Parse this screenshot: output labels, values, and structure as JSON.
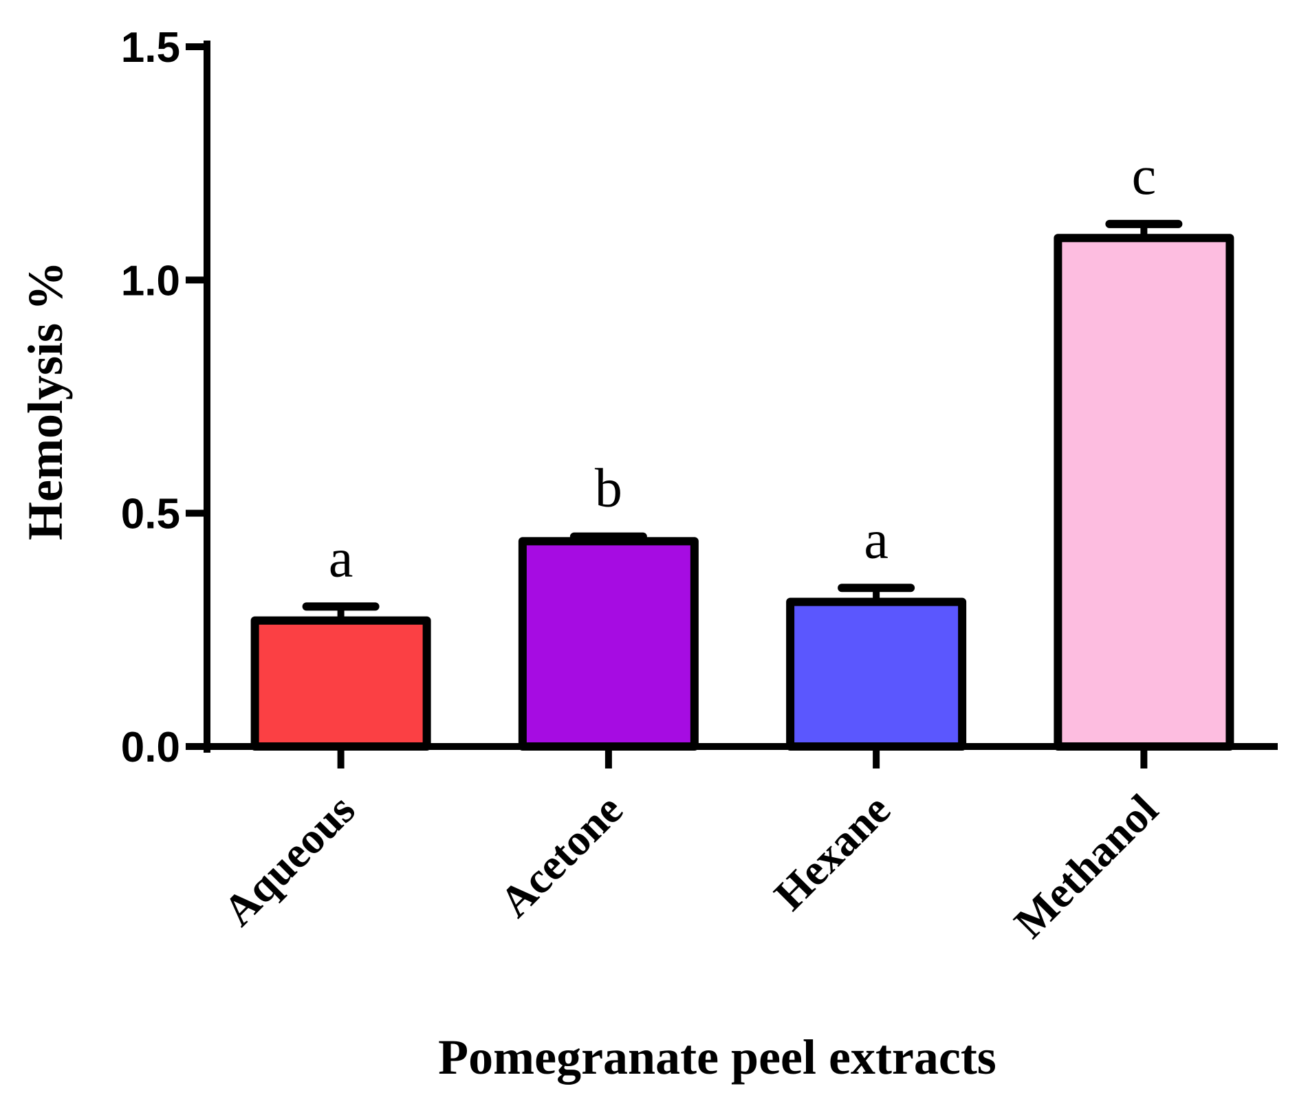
{
  "chart_data": {
    "type": "bar",
    "title": "",
    "xlabel": "Pomegranate peel extracts",
    "ylabel": "Hemolysis %",
    "ylim": [
      0,
      1.5
    ],
    "yticks": [
      0.0,
      0.5,
      1.0,
      1.5
    ],
    "ytick_labels": [
      "0.0",
      "0.5",
      "1.0",
      "1.5"
    ],
    "grid": false,
    "legend": "none",
    "categories": [
      "Aqueous",
      "Acetone",
      "Hexane",
      "Methanol"
    ],
    "values": [
      0.27,
      0.44,
      0.31,
      1.09
    ],
    "errors": [
      0.03,
      0.01,
      0.03,
      0.03
    ],
    "significance": [
      "a",
      "b",
      "a",
      "c"
    ],
    "colors": [
      "#fb4044",
      "#a60ce2",
      "#5b57fe",
      "#fdbde0"
    ]
  }
}
